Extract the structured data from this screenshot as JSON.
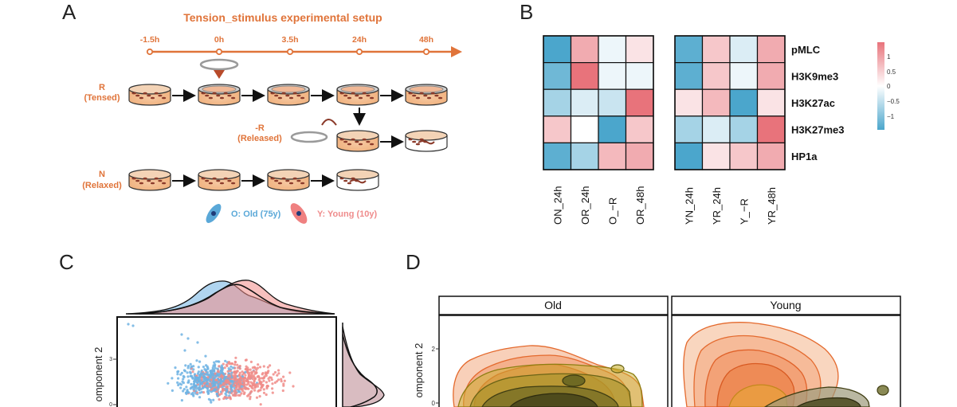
{
  "panel_a": {
    "letter": "A",
    "title": "Tension_stimulus experimental setup",
    "timeline": [
      "-1.5h",
      "0h",
      "3.5h",
      "24h",
      "48h"
    ],
    "row_r_label": [
      "R",
      "(Tensed)"
    ],
    "row_minus_r_label": [
      "-R",
      "(Released)"
    ],
    "row_n_label": [
      "N",
      "(Relaxed)"
    ],
    "legend_old": "O: Old (75y)",
    "legend_young": "Y: Young (10y)",
    "colors": {
      "orange": "#e0743a",
      "old": "#5aa8d8",
      "young": "#ef8080"
    }
  },
  "panel_b": {
    "letter": "B",
    "rows": [
      "pMLC",
      "H3K9me3",
      "H3K27ac",
      "H3K27me3",
      "HP1a"
    ],
    "old_columns": [
      "ON_24h",
      "OR_24h",
      "O_-R",
      "OR_48h"
    ],
    "young_columns": [
      "YN_24h",
      "YR_24h",
      "Y_-R",
      "YR_48h"
    ],
    "legend_ticks": [
      "1",
      "0.5",
      "0",
      "-0.5",
      "-1"
    ]
  },
  "panel_c": {
    "letter": "C",
    "ylabel": "omponent 2",
    "yticks": [
      "3",
      "0"
    ],
    "colors": {
      "old": "#6fb3e3",
      "young": "#f08c88"
    }
  },
  "panel_d": {
    "letter": "D",
    "ylabel": "omponent 2",
    "yticks": [
      "2",
      "0"
    ],
    "facet_old": "Old",
    "facet_young": "Young"
  },
  "chart_data": [
    {
      "type": "heatmap",
      "rows": [
        "pMLC",
        "H3K9me3",
        "H3K27ac",
        "H3K27me3",
        "HP1a"
      ],
      "columns": [
        "ON_24h",
        "OR_24h",
        "O_-R",
        "OR_48h"
      ],
      "values": [
        [
          -1.0,
          0.6,
          -0.1,
          0.2
        ],
        [
          -0.8,
          1.0,
          -0.1,
          -0.1
        ],
        [
          -0.5,
          -0.2,
          -0.3,
          1.0
        ],
        [
          0.4,
          0.0,
          -1.2,
          0.4
        ],
        [
          -0.9,
          -0.5,
          0.5,
          0.6
        ]
      ]
    },
    {
      "type": "heatmap",
      "rows": [
        "pMLC",
        "H3K9me3",
        "H3K27ac",
        "H3K27me3",
        "HP1a"
      ],
      "columns": [
        "YN_24h",
        "YR_24h",
        "Y_-R",
        "YR_48h"
      ],
      "values": [
        [
          -0.9,
          0.4,
          -0.2,
          0.6
        ],
        [
          -0.9,
          0.4,
          -0.1,
          0.6
        ],
        [
          0.2,
          0.5,
          -1.2,
          0.2
        ],
        [
          -0.5,
          -0.2,
          -0.5,
          1.0
        ],
        [
          -1.0,
          0.2,
          0.4,
          0.6
        ]
      ]
    }
  ]
}
